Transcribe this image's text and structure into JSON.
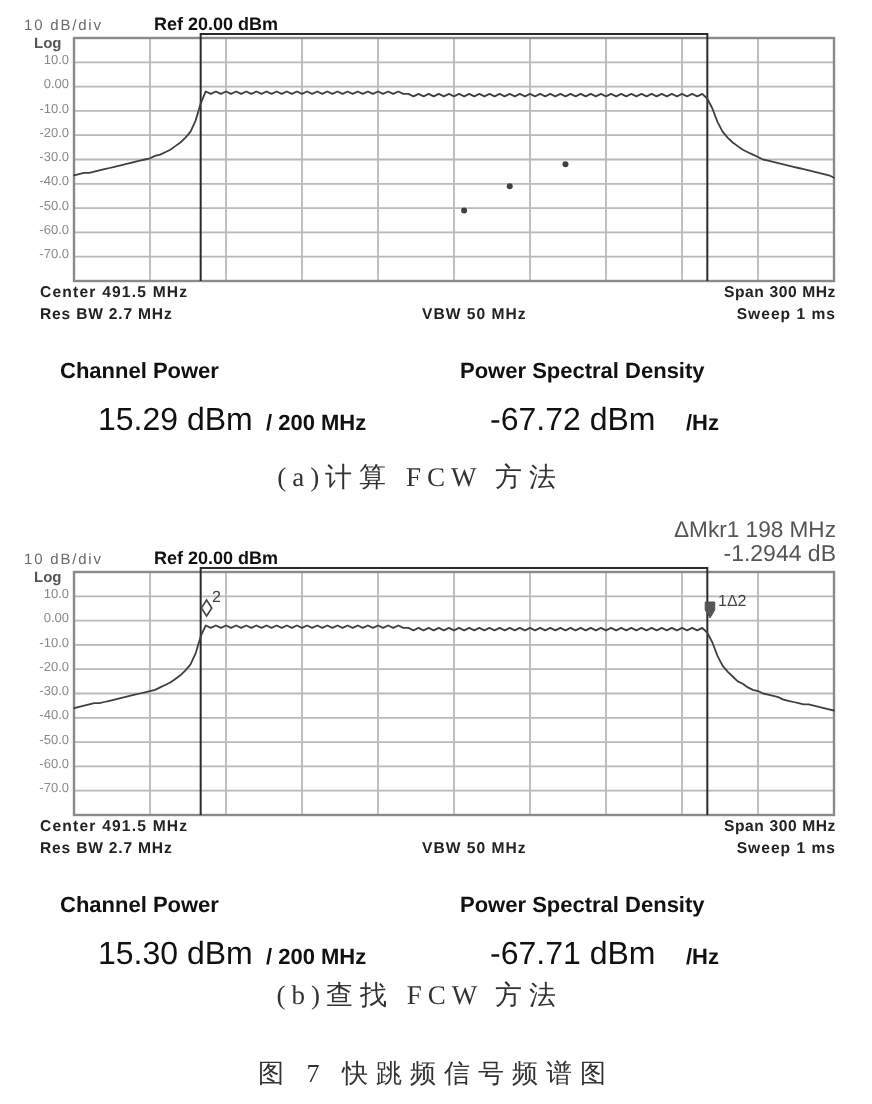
{
  "chart_data": [
    {
      "type": "line",
      "title": "(a)计算 FCW 方法",
      "categories": [
        null,
        null,
        null,
        null,
        null,
        null,
        null,
        null,
        null,
        null,
        null,
        null,
        null,
        null,
        null,
        null,
        null,
        null,
        null,
        null,
        null,
        null,
        null,
        null,
        null,
        null,
        null,
        null,
        null,
        null,
        null,
        null,
        null,
        null,
        null,
        null,
        null,
        null,
        null,
        null,
        null,
        null,
        null,
        null,
        null,
        null,
        null,
        null,
        null,
        null,
        null,
        null,
        null,
        null,
        null,
        null,
        null,
        null,
        null,
        null,
        null,
        null,
        null,
        null,
        null,
        null,
        null,
        null,
        null,
        null,
        null,
        null,
        null,
        null,
        null,
        null,
        null,
        null,
        null,
        null,
        null,
        null,
        null,
        null,
        null,
        null,
        null,
        null,
        null,
        null,
        null,
        null,
        null,
        null,
        null,
        null,
        null,
        null,
        null,
        null,
        null,
        null,
        null,
        null,
        null,
        null,
        null,
        null,
        null,
        null,
        null,
        null,
        null,
        null,
        null,
        null,
        null,
        null,
        null,
        null,
        null,
        null,
        null,
        null,
        null,
        null,
        null,
        null,
        null,
        null,
        null,
        null,
        null,
        null,
        null,
        null,
        null,
        null,
        null,
        null,
        null,
        null,
        null,
        null,
        null,
        null,
        null,
        null,
        null,
        null,
        null
      ],
      "series": [
        {
          "color": "#404040",
          "values": [
            -36.5,
            -36,
            -35.5,
            -35.5,
            -35,
            -34.5,
            -34,
            -33.5,
            -33,
            -32.5,
            -32,
            -31.5,
            -31,
            -30.5,
            -30,
            -29.5,
            -28.5,
            -28,
            -27,
            -26,
            -24.5,
            -23,
            -21,
            -18.5,
            -14,
            -7,
            -2,
            -3,
            -2,
            -3,
            -2,
            -3,
            -2,
            -3,
            -2,
            -3,
            -2,
            -3,
            -2,
            -3,
            -2,
            -3,
            -2,
            -3,
            -2,
            -3,
            -2,
            -3,
            -2,
            -3,
            -2,
            -3,
            -2,
            -3,
            -2,
            -3,
            -2,
            -3,
            -2,
            -3,
            -2,
            -3,
            -2,
            -3,
            -2,
            -3,
            -3,
            -4,
            -3,
            -4,
            -3,
            -4,
            -3,
            -4,
            -3,
            -4,
            -3,
            -4,
            -3,
            -4,
            -3,
            -4,
            -3,
            -4,
            -3,
            -4,
            -3,
            -4,
            -3,
            -4,
            -3,
            -4,
            -3,
            -4,
            -3,
            -4,
            -3,
            -4,
            -3,
            -4,
            -3,
            -4,
            -3,
            -4,
            -3,
            -4,
            -3,
            -4,
            -3,
            -4,
            -3,
            -4,
            -3,
            -4,
            -3,
            -4,
            -3,
            -4,
            -3,
            -4,
            -3,
            -4,
            -3,
            -4,
            -3,
            -5,
            -9,
            -14.5,
            -18.5,
            -21,
            -23,
            -24.5,
            -26,
            -27,
            -28,
            -29,
            -30,
            -30.5,
            -31,
            -31.5,
            -32,
            -32.5,
            -33,
            -33.5,
            -34,
            -34.5,
            -35,
            -35.5,
            -36,
            -36.5,
            -37.5
          ]
        },
        {
          "type": "scatter",
          "color": "#404040",
          "values": [
            null,
            null,
            null,
            null,
            null,
            null,
            null,
            null,
            null,
            null,
            null,
            null,
            null,
            null,
            null,
            null,
            null,
            null,
            null,
            null,
            null,
            null,
            null,
            null,
            null,
            null,
            null,
            null,
            null,
            null,
            null,
            null,
            null,
            null,
            null,
            null,
            null,
            null,
            null,
            null,
            null,
            null,
            null,
            null,
            null,
            null,
            null,
            null,
            null,
            null,
            null,
            null,
            null,
            null,
            null,
            null,
            null,
            null,
            null,
            null,
            null,
            null,
            null,
            null,
            null,
            null,
            null,
            null,
            null,
            null,
            null,
            null,
            null,
            null,
            null,
            null,
            null,
            -51,
            null,
            null,
            null,
            null,
            null,
            null,
            null,
            null,
            -41,
            null,
            null,
            null,
            null,
            null,
            null,
            null,
            null,
            null,
            null,
            -32,
            null,
            null,
            null,
            null,
            null,
            null,
            null,
            null,
            null,
            null,
            null,
            null,
            null,
            null,
            null,
            null,
            null,
            null,
            null,
            null,
            null,
            null,
            null,
            null,
            null,
            null,
            null,
            null,
            null,
            null,
            null,
            null,
            null,
            null,
            null,
            null,
            null,
            null,
            null,
            null,
            null,
            null,
            null,
            null,
            null,
            null,
            null,
            null,
            null,
            null,
            null,
            null,
            null
          ]
        }
      ],
      "ylim": [
        -80,
        20
      ],
      "yticks": [
        {
          "value": 10,
          "label": "10.0"
        },
        {
          "value": 0,
          "label": "0.00"
        },
        {
          "value": -10,
          "label": "-10.0"
        },
        {
          "value": -20,
          "label": "-20.0"
        },
        {
          "value": -30,
          "label": "-30.0"
        },
        {
          "value": -40,
          "label": "-40.0"
        },
        {
          "value": -50,
          "label": "-50.0"
        },
        {
          "value": -60,
          "label": "-60.0"
        },
        {
          "value": -70,
          "label": "-70.0"
        }
      ],
      "grid": true,
      "annotations": [
        "10 dB/div",
        "Log",
        "Ref 20.00 dBm",
        "Center 491.5 MHz",
        "Span 300 MHz",
        "Res BW 2.7 MHz",
        "VBW 50 MHz",
        "Sweep 1 ms",
        "Channel Power",
        "Power Spectral Density",
        "15.29 dBm",
        "/ 200 MHz",
        "-67.72 dBm",
        "/Hz"
      ]
    },
    {
      "type": "line",
      "title": "(b)查找 FCW 方法",
      "categories": [
        null,
        null,
        null,
        null,
        null,
        null,
        null,
        null,
        null,
        null,
        null,
        null,
        null,
        null,
        null,
        null,
        null,
        null,
        null,
        null,
        null,
        null,
        null,
        null,
        null,
        null,
        null,
        null,
        null,
        null,
        null,
        null,
        null,
        null,
        null,
        null,
        null,
        null,
        null,
        null,
        null,
        null,
        null,
        null,
        null,
        null,
        null,
        null,
        null,
        null,
        null,
        null,
        null,
        null,
        null,
        null,
        null,
        null,
        null,
        null,
        null,
        null,
        null,
        null,
        null,
        null,
        null,
        null,
        null,
        null,
        null,
        null,
        null,
        null,
        null,
        null,
        null,
        null,
        null,
        null,
        null,
        null,
        null,
        null,
        null,
        null,
        null,
        null,
        null,
        null,
        null,
        null,
        null,
        null,
        null,
        null,
        null,
        null,
        null,
        null,
        null,
        null,
        null,
        null,
        null,
        null,
        null,
        null,
        null,
        null,
        null,
        null,
        null,
        null,
        null,
        null,
        null,
        null,
        null,
        null,
        null,
        null,
        null,
        null,
        null,
        null,
        null,
        null,
        null,
        null,
        null,
        null,
        null,
        null,
        null,
        null,
        null,
        null,
        null,
        null,
        null,
        null,
        null,
        null,
        null,
        null,
        null,
        null,
        null,
        null,
        null
      ],
      "series": [
        {
          "color": "#404040",
          "values": [
            -36,
            -35.5,
            -35,
            -34.5,
            -34,
            -34,
            -33.5,
            -33,
            -32.5,
            -32,
            -31.5,
            -31,
            -30.5,
            -30,
            -29.5,
            -29,
            -28.5,
            -27.5,
            -26.5,
            -25.5,
            -24,
            -22.5,
            -20.5,
            -18,
            -13.5,
            -6.5,
            -2,
            -3,
            -2,
            -3,
            -2,
            -3,
            -2,
            -3,
            -2,
            -3,
            -2,
            -3,
            -2,
            -3,
            -2,
            -3,
            -2,
            -3,
            -2,
            -3,
            -2,
            -3,
            -2,
            -3,
            -2,
            -3,
            -2,
            -3,
            -2,
            -3,
            -2,
            -3,
            -2,
            -3,
            -2,
            -3,
            -2,
            -3,
            -2,
            -3,
            -3,
            -4,
            -3,
            -4,
            -3,
            -4,
            -3,
            -4,
            -3,
            -4,
            -3,
            -4,
            -3,
            -4,
            -3,
            -4,
            -3,
            -4,
            -3,
            -4,
            -3,
            -4,
            -3,
            -4,
            -3,
            -4,
            -3,
            -4,
            -3,
            -4,
            -3,
            -4,
            -3,
            -4,
            -3,
            -4,
            -3,
            -4,
            -3,
            -4,
            -3,
            -4,
            -3,
            -4,
            -3,
            -4,
            -3,
            -4,
            -3,
            -4,
            -3,
            -4,
            -3,
            -4,
            -3,
            -4,
            -3,
            -4,
            -3,
            -5,
            -9,
            -14.5,
            -18.5,
            -21,
            -23,
            -25,
            -26,
            -27.5,
            -28.5,
            -29,
            -30,
            -30.5,
            -31,
            -31.5,
            -32.5,
            -33,
            -33.5,
            -34,
            -34.5,
            -34.5,
            -35,
            -35.5,
            -36,
            -36.5,
            -37
          ]
        }
      ],
      "ylim": [
        -80,
        20
      ],
      "yticks": [
        {
          "value": 10,
          "label": "10.0"
        },
        {
          "value": 0,
          "label": "0.00"
        },
        {
          "value": -10,
          "label": "-10.0"
        },
        {
          "value": -20,
          "label": "-20.0"
        },
        {
          "value": -30,
          "label": "-30.0"
        },
        {
          "value": -40,
          "label": "-40.0"
        },
        {
          "value": -50,
          "label": "-50.0"
        },
        {
          "value": -60,
          "label": "-60.0"
        },
        {
          "value": -70,
          "label": "-70.0"
        }
      ],
      "grid": true,
      "annotations": [
        "10 dB/div",
        "Log",
        "Ref 20.00 dBm",
        "Center 491.5 MHz",
        "Span 300 MHz",
        "Res BW 2.7 MHz",
        "VBW 50 MHz",
        "Sweep 1 ms",
        "Channel Power",
        "Power Spectral Density",
        "15.30 dBm",
        "/ 200 MHz",
        "-67.71 dBm",
        "/Hz",
        "ΔMkr1 198 MHz",
        "-1.2944 dB",
        "2",
        "1Δ2",
        "图 7 快跳频信号频谱图"
      ]
    }
  ]
}
